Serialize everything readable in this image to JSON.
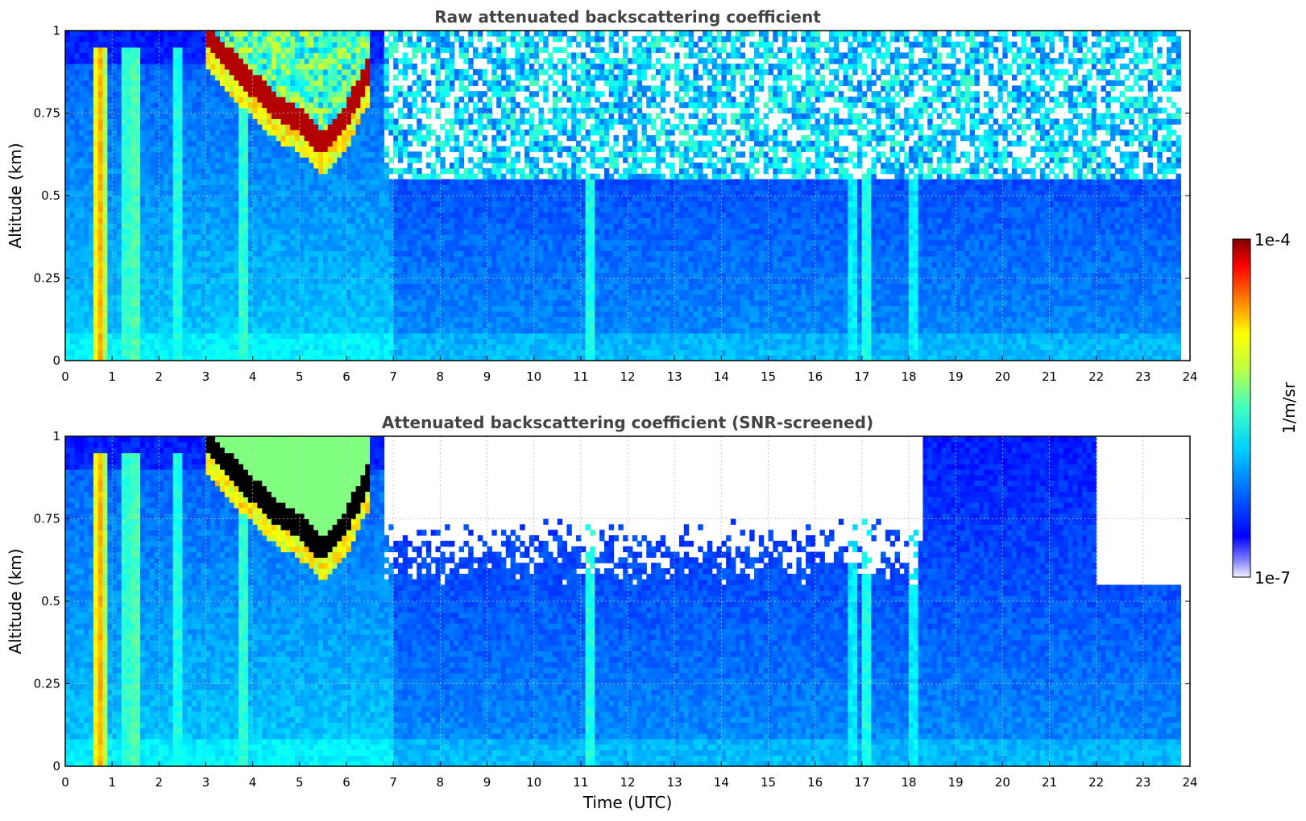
{
  "chart_data": [
    {
      "type": "heatmap",
      "title": "Raw attenuated backscattering coefficient",
      "xlabel": "",
      "ylabel": "Altitude (km)",
      "xlim": [
        0,
        24
      ],
      "ylim": [
        0,
        1
      ],
      "x_ticks": [
        "0",
        "1",
        "2",
        "3",
        "4",
        "5",
        "6",
        "7",
        "8",
        "9",
        "10",
        "11",
        "12",
        "13",
        "14",
        "15",
        "16",
        "17",
        "18",
        "19",
        "20",
        "21",
        "22",
        "23",
        "24"
      ],
      "y_ticks": [
        "0",
        "0.25",
        "0.5",
        "0.75",
        "1"
      ],
      "grid": true,
      "screened": false,
      "data_end_time": 23.8,
      "cloud_layer": {
        "description_time": [
          3.0,
          3.5,
          4.0,
          4.5,
          5.0,
          5.5,
          6.0,
          6.5
        ],
        "base_altitude": [
          0.95,
          0.87,
          0.8,
          0.73,
          0.69,
          0.62,
          0.7,
          0.85
        ]
      },
      "aerosol_top_altitude": 0.45
    },
    {
      "type": "heatmap",
      "title": "Attenuated backscattering coefficient (SNR-screened)",
      "xlabel": "Time (UTC)",
      "ylabel": "Altitude (km)",
      "xlim": [
        0,
        24
      ],
      "ylim": [
        0,
        1
      ],
      "x_ticks": [
        "0",
        "1",
        "2",
        "3",
        "4",
        "5",
        "6",
        "7",
        "8",
        "9",
        "10",
        "11",
        "12",
        "13",
        "14",
        "15",
        "16",
        "17",
        "18",
        "19",
        "20",
        "21",
        "22",
        "23",
        "24"
      ],
      "y_ticks": [
        "0",
        "0.25",
        "0.5",
        "0.75",
        "1"
      ],
      "grid": true,
      "screened": true,
      "data_end_time": 23.8,
      "cloud_layer": {
        "description_time": [
          3.0,
          3.5,
          4.0,
          4.5,
          5.0,
          5.5,
          6.0,
          6.5
        ],
        "base_altitude": [
          0.95,
          0.87,
          0.8,
          0.73,
          0.69,
          0.62,
          0.7,
          0.85
        ]
      },
      "aerosol_top_altitude": 0.45
    }
  ],
  "colorbar": {
    "label": "1/m/sr",
    "max_label": "1e-4",
    "min_label": "1e-7",
    "min": 1e-07,
    "max": 0.0001,
    "scale": "log",
    "colormap": "jet"
  }
}
